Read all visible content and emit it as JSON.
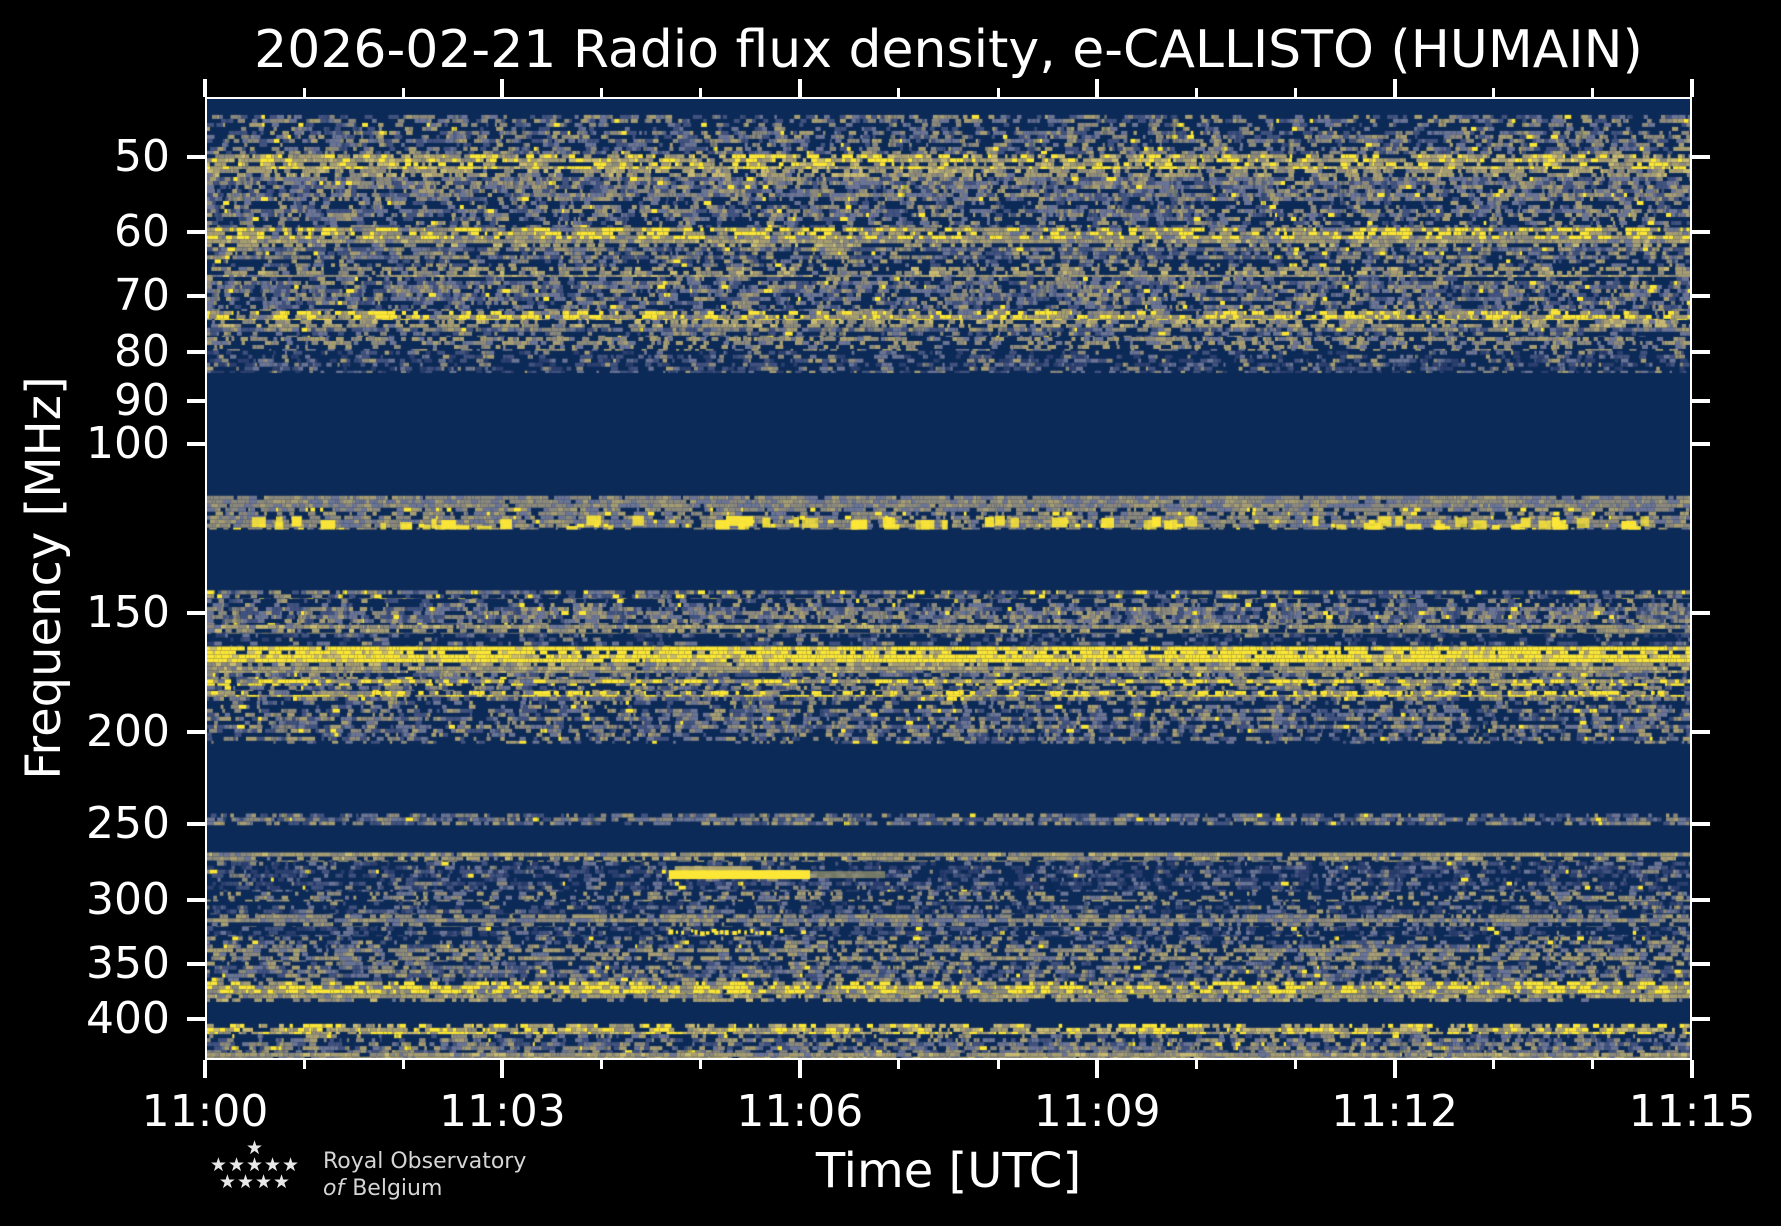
{
  "title": "2026-02-21 Radio flux density, e-CALLISTO (HUMAIN)",
  "axes": {
    "x_label": "Time [UTC]",
    "y_label": "Frequency [MHz]"
  },
  "logo": {
    "stars": [
      "★",
      "★★★★★",
      "★★★★"
    ],
    "line1": "Royal Observatory",
    "line2_italic": "of",
    "line2_rest": "Belgium"
  },
  "chart_data": {
    "type": "heatmap",
    "subtype": "radio-spectrogram",
    "title": "2026-02-21 Radio flux density, e-CALLISTO (HUMAIN)",
    "xlabel": "Time [UTC]",
    "ylabel": "Frequency [MHz]",
    "x_start": "11:00",
    "x_end": "11:15",
    "x_span_min": 15,
    "x_major_tick_labels": [
      "11:00",
      "11:03",
      "11:06",
      "11:09",
      "11:12",
      "11:15"
    ],
    "x_major_tick_every_min": 3,
    "x_minor_tick_every_min": 1,
    "y_scale": "log",
    "y_ticks_mhz": [
      50,
      60,
      70,
      80,
      90,
      100,
      150,
      200,
      250,
      300,
      350,
      400
    ],
    "f_min_mhz": 43.5,
    "f_max_mhz": 439,
    "colormap": "cividis",
    "palette": {
      "background": "#0c2a57",
      "axis": "#ffffff",
      "text": "#ffffff",
      "navy": "#0c2a57",
      "dark1": "#16305f",
      "dark2": "#2c3f6e",
      "blue1": "#42527e",
      "blue2": "#57648c",
      "slate": "#6b7494",
      "gray": "#8b887c",
      "tan": "#a79d72",
      "tan2": "#c9ba72",
      "yellow": "#fce636"
    },
    "bands": [
      [
        43.5,
        45.2,
        "blank"
      ],
      [
        45.2,
        49.7,
        "noise2"
      ],
      [
        49.7,
        51.5,
        "tanbright"
      ],
      [
        51.5,
        52.5,
        "tan"
      ],
      [
        52.5,
        59.3,
        "noise2"
      ],
      [
        59.3,
        61.0,
        "ydash"
      ],
      [
        61.0,
        62.2,
        "tan"
      ],
      [
        62.2,
        65.2,
        "noise2"
      ],
      [
        65.2,
        66.8,
        "tan"
      ],
      [
        66.8,
        72.5,
        "noise2"
      ],
      [
        72.5,
        74.1,
        "ydash"
      ],
      [
        74.1,
        75.5,
        "tan"
      ],
      [
        75.5,
        77.2,
        "noise2"
      ],
      [
        77.2,
        79.8,
        "tandash"
      ],
      [
        79.8,
        84.2,
        "noise1"
      ],
      [
        84.2,
        113.2,
        "blank"
      ],
      [
        113.2,
        116.5,
        "gray"
      ],
      [
        116.5,
        122.8,
        "blobs"
      ],
      [
        122.8,
        142.2,
        "blank"
      ],
      [
        142.2,
        145.2,
        "yfleck"
      ],
      [
        145.2,
        154.5,
        "noise2"
      ],
      [
        154.5,
        157.8,
        "tan"
      ],
      [
        157.8,
        162.8,
        "noise1"
      ],
      [
        162.8,
        169.2,
        "ysolid"
      ],
      [
        169.2,
        173.5,
        "tan"
      ],
      [
        173.5,
        176.2,
        "noise2"
      ],
      [
        176.2,
        179.0,
        "ydash"
      ],
      [
        179.0,
        181.2,
        "noise2"
      ],
      [
        181.2,
        183.8,
        "ydash"
      ],
      [
        183.8,
        205.8,
        "noise2"
      ],
      [
        205.8,
        243.5,
        "blank"
      ],
      [
        243.5,
        250.5,
        "noise2"
      ],
      [
        250.5,
        267.5,
        "blank"
      ],
      [
        267.5,
        273.5,
        "tan"
      ],
      [
        273.5,
        294.0,
        "spur"
      ],
      [
        294.0,
        301.0,
        "tandash"
      ],
      [
        301.0,
        310.5,
        "noise1"
      ],
      [
        310.5,
        320.0,
        "gray"
      ],
      [
        320.0,
        327.5,
        "spur"
      ],
      [
        327.5,
        337.0,
        "noise2"
      ],
      [
        337.0,
        348.0,
        "tandash"
      ],
      [
        348.0,
        365.0,
        "noise2"
      ],
      [
        365.0,
        376.5,
        "ydash"
      ],
      [
        376.5,
        383.5,
        "tan"
      ],
      [
        383.5,
        404.3,
        "blank"
      ],
      [
        404.3,
        414.5,
        "tanbright"
      ],
      [
        414.5,
        433.5,
        "noise2"
      ],
      [
        433.5,
        439.0,
        "tan"
      ]
    ],
    "features": [
      {
        "type": "burst-streak",
        "f_mhz": 282.5,
        "t_start_min": 4.67,
        "t_core_end_min": 6.1,
        "t_end_min": 6.86
      },
      {
        "type": "dotted-line",
        "f_mhz": 323.0,
        "t_start_min": 4.67,
        "t_end_min": 6.07
      }
    ]
  }
}
